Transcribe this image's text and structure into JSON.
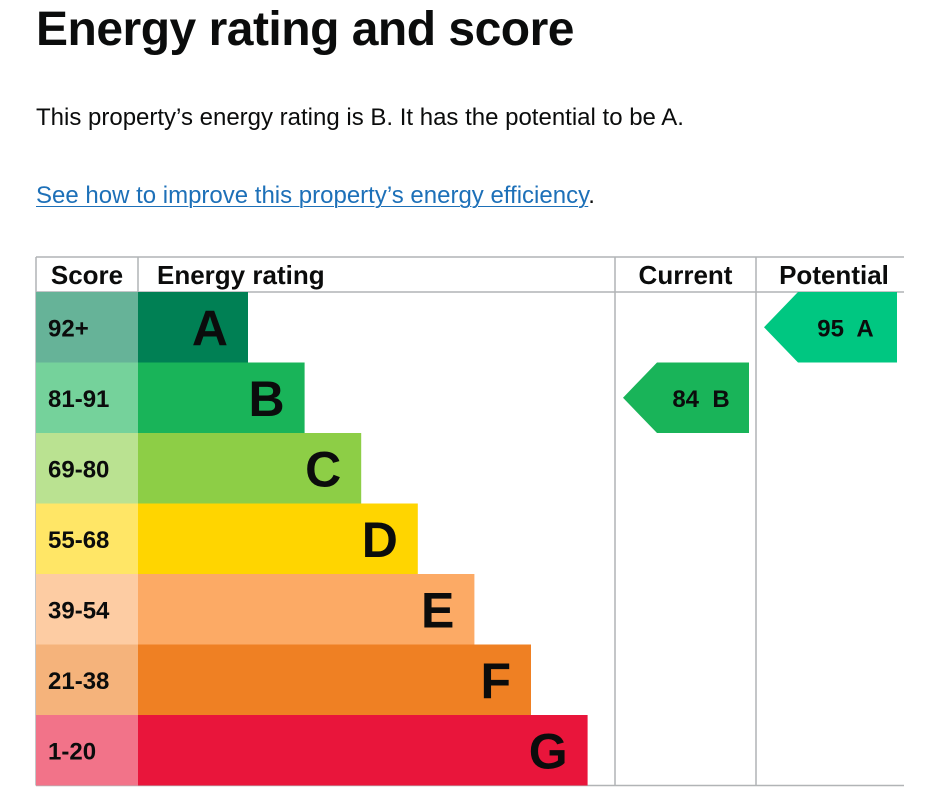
{
  "page": {
    "title": "Energy rating and score",
    "summary": "This property’s energy rating is B. It has the potential to be A.",
    "improve_link": "See how to improve this property’s energy efficiency",
    "improve_link_suffix": "."
  },
  "chart_data": {
    "type": "bar",
    "headers": {
      "score": "Score",
      "energy_rating": "Energy rating",
      "current": "Current",
      "potential": "Potential"
    },
    "bands": [
      {
        "band": "A",
        "range": "92+",
        "color": "#008054",
        "score_bg": "#66b398"
      },
      {
        "band": "B",
        "range": "81-91",
        "color": "#19b459",
        "score_bg": "#75d29b"
      },
      {
        "band": "C",
        "range": "69-80",
        "color": "#8dce46",
        "score_bg": "#bae291"
      },
      {
        "band": "D",
        "range": "55-68",
        "color": "#ffd500",
        "score_bg": "#ffe666"
      },
      {
        "band": "E",
        "range": "39-54",
        "color": "#fcaa65",
        "score_bg": "#fdcca3"
      },
      {
        "band": "F",
        "range": "21-38",
        "color": "#ef8023",
        "score_bg": "#f5b37b"
      },
      {
        "band": "G",
        "range": "1-20",
        "color": "#e9153b",
        "score_bg": "#f27389"
      }
    ],
    "current": {
      "score": 84,
      "band": "B",
      "label": "84  B",
      "color": "#19b459"
    },
    "potential": {
      "score": 95,
      "band": "A",
      "label": "95  A",
      "color": "#00c781"
    },
    "colors": {
      "A": "#00c781",
      "B": "#19b459",
      "C": "#8dce46",
      "D": "#ffd500",
      "E": "#fcaa65",
      "F": "#ef8023",
      "G": "#e9153b"
    }
  }
}
